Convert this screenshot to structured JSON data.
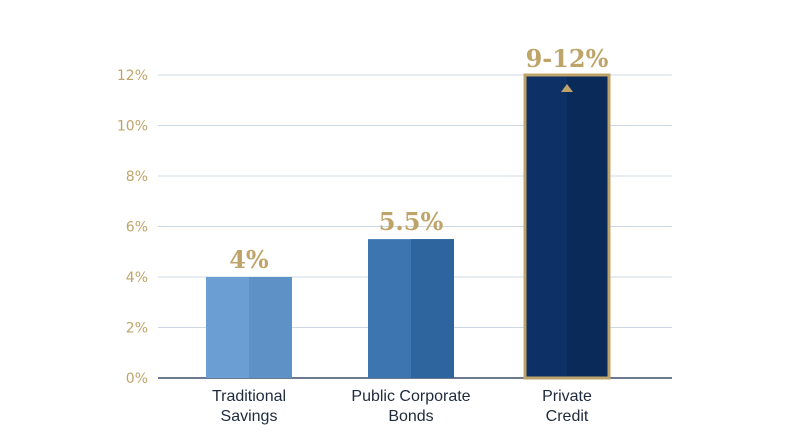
{
  "chart_data": {
    "type": "bar",
    "categories": [
      [
        "Traditional",
        "Savings"
      ],
      [
        "Public Corporate",
        "Bonds"
      ],
      [
        "Private",
        "Credit"
      ]
    ],
    "values": [
      4,
      5.5,
      12
    ],
    "range_low": [
      null,
      null,
      9
    ],
    "data_labels": [
      "4%",
      "5.5%",
      "9-12%"
    ],
    "yticks": [
      "0%",
      "2%",
      "4%",
      "6%",
      "8%",
      "10%",
      "12%"
    ],
    "ylim": [
      0,
      12
    ],
    "grid": true,
    "colors": {
      "bars": [
        "#6b9fd4",
        "#3c75b0",
        "#0d3166"
      ],
      "bars_shade": [
        "#5e92c7",
        "#2f659f",
        "#0a2a5a"
      ],
      "accent": "#bfa46a",
      "grid": "#cdd8e2",
      "axis": "#3a4f6a"
    },
    "highlight_marker_icon": "triangle-up-icon"
  }
}
